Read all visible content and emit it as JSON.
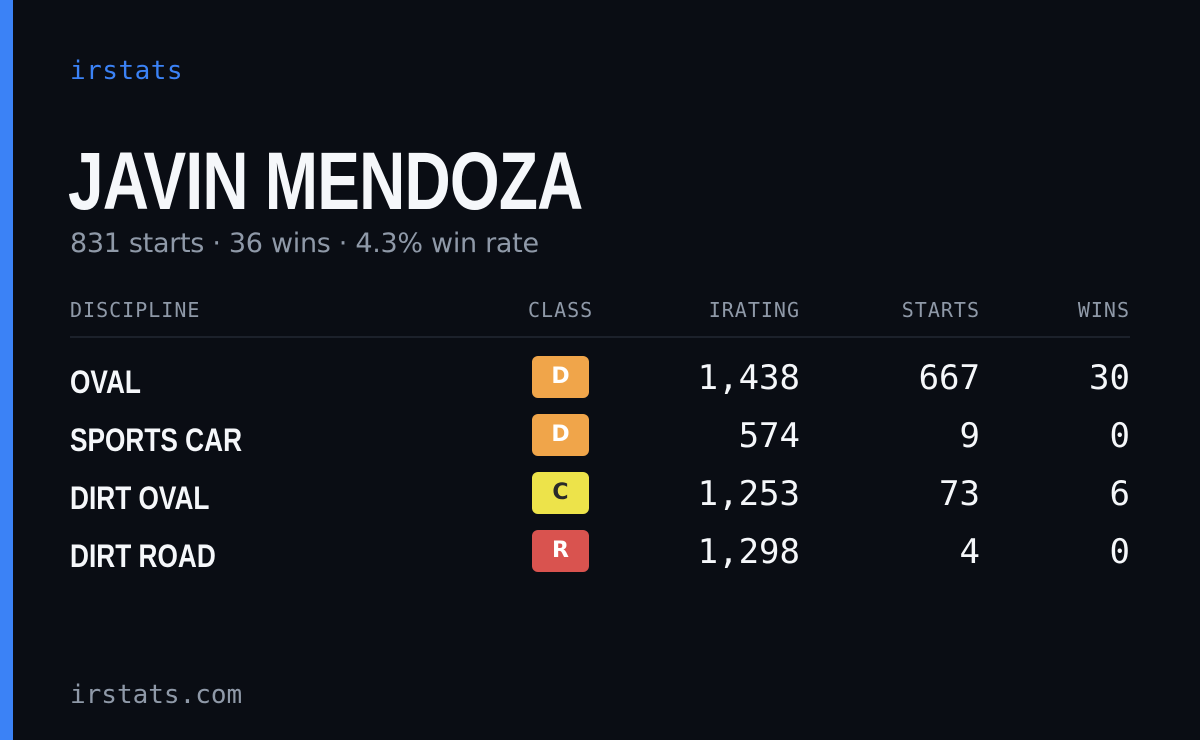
{
  "brand": "irstats",
  "player": {
    "name": "JAVIN MENDOZA",
    "summary": "831 starts · 36 wins · 4.3% win rate"
  },
  "table": {
    "headers": {
      "discipline": "DISCIPLINE",
      "class": "CLASS",
      "irating": "IRATING",
      "starts": "STARTS",
      "wins": "WINS"
    },
    "rows": [
      {
        "discipline": "OVAL",
        "class": "D",
        "class_color": "#f0a54a",
        "class_text_color": "#ffffff",
        "irating": "1,438",
        "starts": "667",
        "wins": "30"
      },
      {
        "discipline": "SPORTS CAR",
        "class": "D",
        "class_color": "#f0a54a",
        "class_text_color": "#ffffff",
        "irating": "574",
        "starts": "9",
        "wins": "0"
      },
      {
        "discipline": "DIRT OVAL",
        "class": "C",
        "class_color": "#ede34a",
        "class_text_color": "#2a2a2a",
        "irating": "1,253",
        "starts": "73",
        "wins": "6"
      },
      {
        "discipline": "DIRT ROAD",
        "class": "R",
        "class_color": "#d9534f",
        "class_text_color": "#ffffff",
        "irating": "1,298",
        "starts": "4",
        "wins": "0"
      }
    ]
  },
  "footer": "irstats.com",
  "colors": {
    "background": "#0a0d14",
    "accent": "#3b82f6",
    "text": "#f5f7fa",
    "muted": "#8f99a8"
  }
}
